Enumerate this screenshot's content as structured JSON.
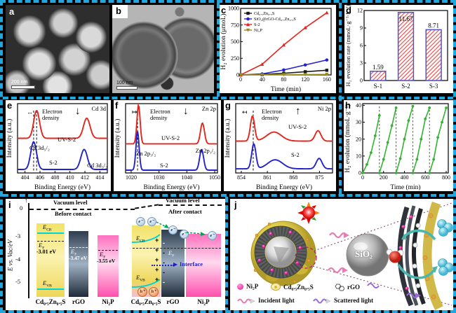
{
  "colors": {
    "border_cyan": "#21a7e0",
    "red": "#e3261d",
    "blue": "#2323cb",
    "green": "#2fb52f",
    "olive": "#9a8d20",
    "black": "#1a1a1a",
    "bar_hatch": "#ef5350",
    "bar_edge": "#5156c5",
    "cyan_band_line": "#00d5d5",
    "band_yellow": "#f2e266",
    "band_dark": "#2e3c4c",
    "band_pink": "#ff4fae"
  },
  "panels": {
    "a": {
      "label": "a",
      "scale_bar": "200 nm"
    },
    "b": {
      "label": "b",
      "scale_bar": "100 nm"
    },
    "c": {
      "label": "c"
    },
    "d": {
      "label": "d"
    },
    "e": {
      "label": "e",
      "region": "Cd 3d",
      "electron_density": "Electron density",
      "arrow": "↓",
      "shift_arrow": "↔",
      "curve_top": "UV-S-2",
      "curve_bottom": "S-2",
      "peak_left": "Cd 3d₅/₂",
      "peak_right": "Cd 3d₃/₂"
    },
    "f": {
      "label": "f",
      "region": "Zn 2p",
      "electron_density": "Electron density",
      "arrow": "↓",
      "shift_arrow": "↦",
      "curve_top": "UV-S-2",
      "curve_bottom": "S-2",
      "peak_left": "Zn 2p₃/₂",
      "peak_right": "Zn 2p₁/₂"
    },
    "g": {
      "label": "g",
      "region": "Ni 2p",
      "electron_density": "Electron density",
      "arrow": "↑",
      "shift_arrow": "↤",
      "curve_top": "UV-S-2",
      "curve_bottom": "S-2"
    },
    "h": {
      "label": "h"
    },
    "i": {
      "label": "i",
      "axis_label": "E vs. Vac/eV",
      "tick_0": "0",
      "tick_m3": "-3",
      "tick_m4": "-4",
      "tick_m5": "-5",
      "vacuum_level": "Vacuum level",
      "before_contact": "Before contact",
      "after_contact": "After contact",
      "E": "E",
      "sub_cb": "CB",
      "sub_f": "F",
      "sub_vb": "VB",
      "ef_czs": "-3.01 eV",
      "ef_rgo": "-3.47 eV",
      "ef_ni2p": "-3.55 eV",
      "interface": "Interface",
      "electron": "e⁻",
      "hole": "h⁺",
      "plus": "+",
      "minus": "-",
      "mat_czs": "Cd₀.₅Zn₀.₅S",
      "mat_rgo": "rGO",
      "mat_ni2p": "Ni₂P"
    },
    "j": {
      "label": "j",
      "sio2": "SiO₂",
      "legend": {
        "ni2p": "Ni₂P",
        "czs": "Cd₀.₅Zn₀.₅S",
        "rgo": "rGO",
        "incident": "Incident light",
        "scattered": "Scattered light"
      }
    }
  },
  "chart_data": [
    {
      "id": "c",
      "type": "line",
      "xlabel": "Time (min)",
      "ylabel": "H₂ evolution (μmoL)",
      "xlim": [
        0,
        168
      ],
      "ylim": [
        0,
        1000
      ],
      "xticks": [
        0,
        40,
        80,
        120,
        160
      ],
      "yticks": [
        0,
        250,
        500,
        750,
        1000
      ],
      "x": [
        0,
        40,
        80,
        120,
        160
      ],
      "legend_position": "top-left",
      "grid": false,
      "series": [
        {
          "name": "Cd₀.₅Zn₀.₅S",
          "color": "#1a1a1a",
          "marker": "square",
          "values": [
            0,
            6,
            25,
            48,
            70
          ]
        },
        {
          "name": "SiO₂@rGO-Cd₀.₅Zn₀.₅S",
          "color": "#2323cb",
          "marker": "circle",
          "values": [
            0,
            15,
            75,
            150,
            225
          ]
        },
        {
          "name": "S-2",
          "color": "#e3261d",
          "marker": "triangle",
          "values": [
            0,
            160,
            450,
            710,
            935
          ]
        },
        {
          "name": "Ni₂P",
          "color": "#9a8d20",
          "marker": "tridown",
          "values": [
            0,
            2,
            4,
            6,
            8
          ]
        }
      ]
    },
    {
      "id": "d",
      "type": "bar",
      "ylabel": "H₂ evolution rate (mmoL·g⁻¹·h⁻¹)",
      "ylim": [
        0,
        12
      ],
      "yticks": [
        0,
        3,
        6,
        9,
        12
      ],
      "categories": [
        "S-1",
        "S-2",
        "S-3"
      ],
      "values": [
        1.59,
        11.67,
        8.71
      ],
      "labels": [
        "1.59",
        "11.67",
        "8.71"
      ],
      "bar_fill_hatch": "#ef5350",
      "bar_edge": "#5156c5"
    },
    {
      "id": "e",
      "type": "xps",
      "region": "Cd 3d",
      "xlabel": "Binding Energy (eV)",
      "ylabel": "Intensity (a.u.)",
      "xlim": [
        403,
        415
      ],
      "xticks": [
        404,
        406,
        408,
        410,
        412,
        414
      ],
      "dash_x": [
        405.15,
        405.55
      ],
      "series": [
        {
          "name": "UV-S-2",
          "color": "#e3261d",
          "offset": 0.5,
          "peaks": [
            [
              405.55,
              0.4,
              0.55
            ],
            [
              412.25,
              0.29,
              0.62
            ]
          ]
        },
        {
          "name": "S-2",
          "color": "#2323cb",
          "offset": 0.05,
          "peaks": [
            [
              405.15,
              0.4,
              0.55
            ],
            [
              411.9,
              0.29,
              0.62
            ]
          ]
        }
      ]
    },
    {
      "id": "f",
      "type": "xps",
      "region": "Zn 2p",
      "xlabel": "Binding Energy (eV)",
      "ylabel": "Intensity (a.u.)",
      "xlim": [
        1018,
        1051
      ],
      "xticks": [
        1020,
        1030,
        1040,
        1050
      ],
      "dash_x": [
        1022.3
      ],
      "series": [
        {
          "name": "UV-S-2",
          "color": "#e3261d",
          "offset": 0.42,
          "peaks": [
            [
              1022.65,
              0.56,
              0.8
            ],
            [
              1045.6,
              0.3,
              1.0
            ]
          ]
        },
        {
          "name": "S-2",
          "color": "#2323cb",
          "offset": 0.04,
          "peaks": [
            [
              1022.3,
              0.56,
              0.8
            ],
            [
              1045.3,
              0.3,
              1.0
            ]
          ]
        }
      ]
    },
    {
      "id": "g",
      "type": "xps",
      "region": "Ni 2p",
      "xlabel": "Binding Energy (eV)",
      "ylabel": "Intensity (a.u.)",
      "xlim": [
        852.5,
        878.5
      ],
      "xticks": [
        854,
        861,
        868,
        875
      ],
      "dash_x": [
        857.2
      ],
      "series": [
        {
          "name": "UV-S-2",
          "color": "#e3261d",
          "offset": 0.46,
          "peaks": [
            [
              857.0,
              0.36,
              0.8
            ],
            [
              862.8,
              0.13,
              2.8
            ],
            [
              874.6,
              0.15,
              1.1
            ]
          ]
        },
        {
          "name": "S-2",
          "color": "#2323cb",
          "offset": 0.06,
          "peaks": [
            [
              857.35,
              0.36,
              0.8
            ],
            [
              863.1,
              0.13,
              2.8
            ],
            [
              874.9,
              0.15,
              1.1
            ]
          ]
        }
      ]
    },
    {
      "id": "h",
      "type": "cycles",
      "xlabel": "Time (min)",
      "ylabel": "H₂ evolution (mmoL·g⁻¹)",
      "xlim": [
        0,
        820
      ],
      "ylim": [
        0,
        41
      ],
      "xticks": [
        0,
        200,
        400,
        600,
        800
      ],
      "yticks": [
        0,
        10,
        20,
        30,
        40
      ],
      "color": "#2fb52f",
      "dividers": [
        160,
        320,
        480,
        640
      ],
      "cycles": [
        {
          "t": [
            0,
            40,
            80,
            120,
            160
          ],
          "v": [
            0,
            5,
            12,
            22,
            34
          ]
        },
        {
          "t": [
            160,
            200,
            240,
            280,
            320
          ],
          "v": [
            0,
            8,
            18,
            28,
            38.5
          ]
        },
        {
          "t": [
            320,
            360,
            400,
            440,
            480
          ],
          "v": [
            0,
            8.5,
            20,
            31,
            39.5
          ]
        },
        {
          "t": [
            480,
            520,
            560,
            600,
            640
          ],
          "v": [
            0,
            8,
            20,
            32,
            38.5
          ]
        },
        {
          "t": [
            640,
            680,
            720,
            760,
            800
          ],
          "v": [
            0,
            8,
            21,
            30,
            38.5
          ]
        }
      ]
    }
  ]
}
